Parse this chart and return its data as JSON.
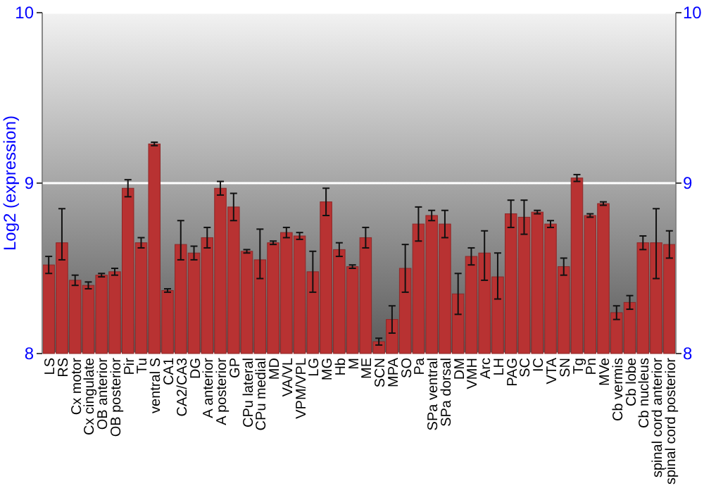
{
  "chart_data": {
    "type": "bar",
    "ylabel": "Log2 (expression)",
    "grid": "y",
    "color": "#b83232",
    "categories": [
      "LS",
      "RS",
      "Cx motor",
      "Cx cingulate",
      "OB anterior",
      "OB posterior",
      "Pir",
      "Tu",
      "ventral S",
      "CA1",
      "CA2/CA3",
      "DG",
      "A anterior",
      "A posterior",
      "GP",
      "CPu lateral",
      "CPu medial",
      "MD",
      "VA/VL",
      "VPM/VPL",
      "LG",
      "MG",
      "Hb",
      "M",
      "ME",
      "SCN",
      "MPA",
      "SO",
      "Pa",
      "SPa ventral",
      "SPa dorsal",
      "DM",
      "VMH",
      "Arc",
      "LH",
      "PAG",
      "SC",
      "IC",
      "VTA",
      "SN",
      "Tg",
      "Pn",
      "MVe",
      "Cb vermis",
      "Cb lobe",
      "Cb nucleus",
      "spinal cord anterior",
      "spinal cord posterior"
    ],
    "values": [
      8.52,
      8.65,
      8.43,
      8.4,
      8.46,
      8.48,
      8.97,
      8.65,
      9.23,
      8.37,
      8.64,
      8.59,
      8.68,
      8.97,
      8.86,
      8.6,
      8.55,
      8.65,
      8.71,
      8.69,
      8.48,
      8.89,
      8.61,
      8.51,
      8.68,
      8.07,
      8.2,
      8.5,
      8.76,
      8.81,
      8.76,
      8.35,
      8.57,
      8.59,
      8.45,
      8.82,
      8.8,
      8.83,
      8.76,
      8.51,
      9.03,
      8.81,
      8.88,
      8.24,
      8.3,
      8.65,
      8.65,
      8.64
    ],
    "errors": [
      0.05,
      [
        8.55,
        8.85
      ],
      0.03,
      0.02,
      0.01,
      0.02,
      0.05,
      0.03,
      0.01,
      0.01,
      [
        8.55,
        8.78
      ],
      0.04,
      0.06,
      0.04,
      0.08,
      0.01,
      [
        8.44,
        8.73
      ],
      0.01,
      0.03,
      0.02,
      0.12,
      0.08,
      0.04,
      0.01,
      0.06,
      0.02,
      0.08,
      0.14,
      0.1,
      0.03,
      0.08,
      0.12,
      0.05,
      [
        8.43,
        8.72
      ],
      [
        8.32,
        8.59
      ],
      0.08,
      0.1,
      0.01,
      0.02,
      0.05,
      0.02,
      0.01,
      0.01,
      0.04,
      0.04,
      0.04,
      [
        8.44,
        8.85
      ],
      0.08
    ],
    "ylim": [
      8,
      10
    ],
    "yticks": [
      8,
      9,
      10
    ],
    "y2lim": [
      8,
      10
    ],
    "y2ticks": [
      8,
      9,
      10
    ]
  }
}
